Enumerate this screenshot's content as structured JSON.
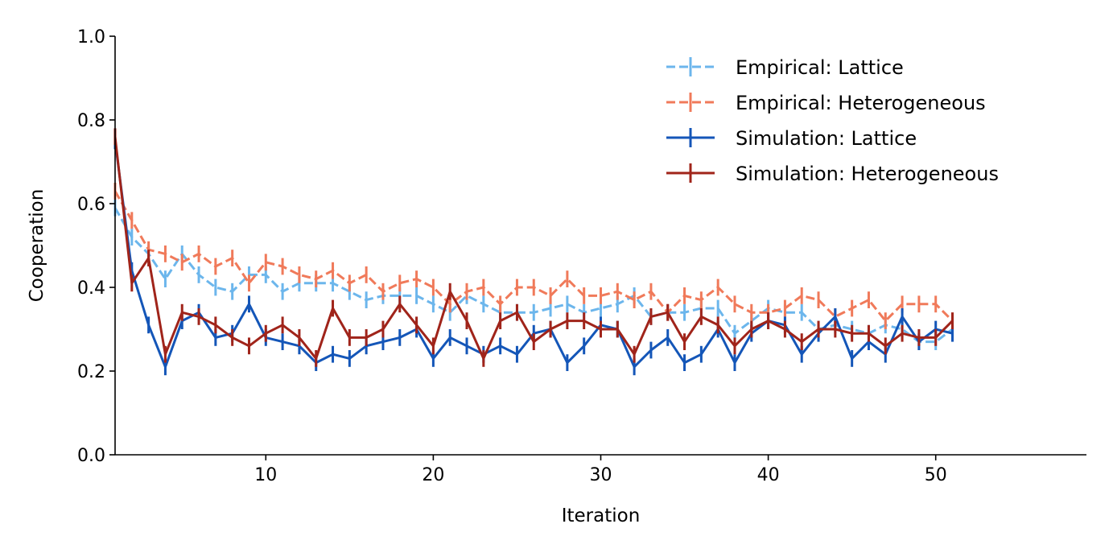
{
  "chart_data": {
    "type": "line",
    "title": "",
    "xlabel": "Iteration",
    "ylabel": "Cooperation",
    "xlim": [
      1,
      59
    ],
    "ylim": [
      0.0,
      1.0
    ],
    "xticks": [
      10,
      20,
      30,
      40,
      50
    ],
    "yticks": [
      0.0,
      0.2,
      0.4,
      0.6,
      0.8,
      1.0
    ],
    "xtick_labels": [
      "10",
      "20",
      "30",
      "40",
      "50"
    ],
    "ytick_labels": [
      "0.0",
      "0.2",
      "0.4",
      "0.6",
      "0.8",
      "1.0"
    ],
    "grid": false,
    "legend_position": "top-right",
    "x": [
      1,
      2,
      3,
      4,
      5,
      6,
      7,
      8,
      9,
      10,
      11,
      12,
      13,
      14,
      15,
      16,
      17,
      18,
      19,
      20,
      21,
      22,
      23,
      24,
      25,
      26,
      27,
      28,
      29,
      30,
      31,
      32,
      33,
      34,
      35,
      36,
      37,
      38,
      39,
      40,
      41,
      42,
      43,
      44,
      45,
      46,
      47,
      48,
      49,
      50,
      51
    ],
    "series": [
      {
        "name": "Empirical: Lattice",
        "color": "#6cb6ec",
        "linestyle": "dashed",
        "values": [
          0.59,
          0.52,
          0.48,
          0.42,
          0.48,
          0.43,
          0.4,
          0.39,
          0.43,
          0.43,
          0.39,
          0.41,
          0.41,
          0.41,
          0.39,
          0.37,
          0.38,
          0.38,
          0.38,
          0.36,
          0.34,
          0.38,
          0.36,
          0.34,
          0.34,
          0.34,
          0.35,
          0.36,
          0.34,
          0.35,
          0.36,
          0.38,
          0.33,
          0.34,
          0.34,
          0.35,
          0.35,
          0.29,
          0.32,
          0.35,
          0.34,
          0.34,
          0.3,
          0.31,
          0.3,
          0.29,
          0.31,
          0.3,
          0.27,
          0.27,
          0.3
        ],
        "errors": [
          0.02,
          0.02,
          0.02,
          0.02,
          0.02,
          0.02,
          0.02,
          0.02,
          0.02,
          0.02,
          0.02,
          0.02,
          0.02,
          0.02,
          0.02,
          0.02,
          0.02,
          0.02,
          0.02,
          0.02,
          0.02,
          0.02,
          0.02,
          0.02,
          0.02,
          0.02,
          0.02,
          0.02,
          0.02,
          0.02,
          0.02,
          0.02,
          0.02,
          0.02,
          0.02,
          0.02,
          0.02,
          0.02,
          0.02,
          0.02,
          0.02,
          0.02,
          0.02,
          0.02,
          0.02,
          0.02,
          0.02,
          0.02,
          0.02,
          0.02,
          0.02
        ]
      },
      {
        "name": "Empirical: Heterogeneous",
        "color": "#f07a5a",
        "linestyle": "dashed",
        "values": [
          0.63,
          0.56,
          0.49,
          0.48,
          0.46,
          0.48,
          0.45,
          0.47,
          0.41,
          0.46,
          0.45,
          0.43,
          0.42,
          0.44,
          0.41,
          0.43,
          0.39,
          0.41,
          0.42,
          0.4,
          0.36,
          0.39,
          0.4,
          0.36,
          0.4,
          0.4,
          0.38,
          0.42,
          0.38,
          0.38,
          0.39,
          0.37,
          0.39,
          0.34,
          0.38,
          0.37,
          0.4,
          0.36,
          0.34,
          0.34,
          0.35,
          0.38,
          0.37,
          0.33,
          0.35,
          0.37,
          0.32,
          0.36,
          0.36,
          0.36,
          0.32
        ],
        "errors": [
          0.02,
          0.02,
          0.02,
          0.02,
          0.02,
          0.02,
          0.02,
          0.02,
          0.02,
          0.02,
          0.02,
          0.02,
          0.02,
          0.02,
          0.02,
          0.02,
          0.02,
          0.02,
          0.02,
          0.02,
          0.02,
          0.02,
          0.02,
          0.02,
          0.02,
          0.02,
          0.02,
          0.02,
          0.02,
          0.02,
          0.02,
          0.02,
          0.02,
          0.02,
          0.02,
          0.02,
          0.02,
          0.02,
          0.02,
          0.02,
          0.02,
          0.02,
          0.02,
          0.02,
          0.02,
          0.02,
          0.02,
          0.02,
          0.02,
          0.02,
          0.02
        ]
      },
      {
        "name": "Simulation: Lattice",
        "color": "#1456b8",
        "linestyle": "solid",
        "values": [
          0.75,
          0.44,
          0.31,
          0.21,
          0.32,
          0.34,
          0.28,
          0.29,
          0.36,
          0.28,
          0.27,
          0.26,
          0.22,
          0.24,
          0.23,
          0.26,
          0.27,
          0.28,
          0.3,
          0.23,
          0.28,
          0.26,
          0.24,
          0.26,
          0.24,
          0.29,
          0.3,
          0.22,
          0.26,
          0.31,
          0.3,
          0.21,
          0.25,
          0.28,
          0.22,
          0.24,
          0.3,
          0.22,
          0.29,
          0.32,
          0.31,
          0.24,
          0.29,
          0.33,
          0.23,
          0.27,
          0.24,
          0.33,
          0.27,
          0.3,
          0.29
        ],
        "errors": [
          0.02,
          0.02,
          0.02,
          0.02,
          0.02,
          0.02,
          0.02,
          0.02,
          0.02,
          0.02,
          0.02,
          0.02,
          0.02,
          0.02,
          0.02,
          0.02,
          0.02,
          0.02,
          0.02,
          0.02,
          0.02,
          0.02,
          0.02,
          0.02,
          0.02,
          0.02,
          0.02,
          0.02,
          0.02,
          0.02,
          0.02,
          0.02,
          0.02,
          0.02,
          0.02,
          0.02,
          0.02,
          0.02,
          0.02,
          0.02,
          0.02,
          0.02,
          0.02,
          0.02,
          0.02,
          0.02,
          0.02,
          0.02,
          0.02,
          0.02,
          0.02
        ]
      },
      {
        "name": "Simulation: Heterogeneous",
        "color": "#a0241a",
        "linestyle": "solid",
        "values": [
          0.76,
          0.41,
          0.47,
          0.24,
          0.34,
          0.33,
          0.31,
          0.28,
          0.26,
          0.29,
          0.31,
          0.28,
          0.23,
          0.35,
          0.28,
          0.28,
          0.3,
          0.36,
          0.31,
          0.26,
          0.39,
          0.32,
          0.23,
          0.32,
          0.34,
          0.27,
          0.3,
          0.32,
          0.32,
          0.3,
          0.3,
          0.24,
          0.33,
          0.34,
          0.27,
          0.33,
          0.31,
          0.26,
          0.3,
          0.32,
          0.3,
          0.27,
          0.3,
          0.3,
          0.29,
          0.29,
          0.26,
          0.29,
          0.28,
          0.28,
          0.32
        ],
        "errors": [
          0.02,
          0.02,
          0.02,
          0.02,
          0.02,
          0.02,
          0.02,
          0.02,
          0.02,
          0.02,
          0.02,
          0.02,
          0.02,
          0.02,
          0.02,
          0.02,
          0.02,
          0.02,
          0.02,
          0.02,
          0.02,
          0.02,
          0.02,
          0.02,
          0.02,
          0.02,
          0.02,
          0.02,
          0.02,
          0.02,
          0.02,
          0.02,
          0.02,
          0.02,
          0.02,
          0.02,
          0.02,
          0.02,
          0.02,
          0.02,
          0.02,
          0.02,
          0.02,
          0.02,
          0.02,
          0.02,
          0.02,
          0.02,
          0.02,
          0.02,
          0.02
        ]
      }
    ]
  }
}
